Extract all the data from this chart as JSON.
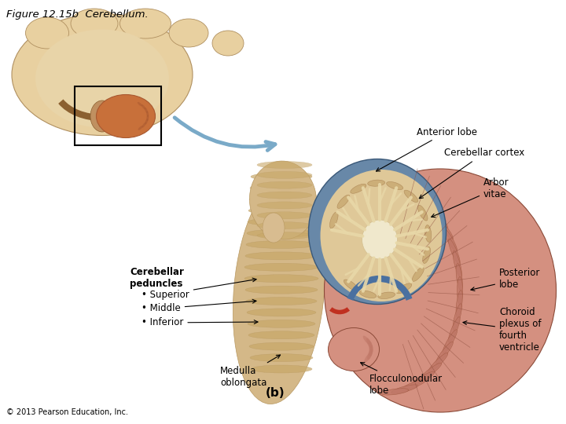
{
  "title": "Figure 12.15b  Cerebellum.",
  "title_fontsize": 9.5,
  "copyright": "© 2013 Pearson Education, Inc.",
  "copyright_fontsize": 7,
  "background_color": "#ffffff",
  "label_b": "(b)",
  "label_b_fontsize": 11,
  "annotation_fontsize": 8.5,
  "peduncle_fontsize": 8.5,
  "colors": {
    "brain_outer": "#E8D0A0",
    "brain_mid": "#DFC090",
    "brain_inner": "#D4AA78",
    "brain_cut": "#C09060",
    "brain_stem": "#B07840",
    "cerebellum_orange": "#C8703A",
    "cerebellum_dark": "#A85830",
    "post_lobe_light": "#D49080",
    "post_lobe_mid": "#C07868",
    "post_lobe_dark": "#A86050",
    "peduncle_tan": "#D4B888",
    "peduncle_dark": "#B89860",
    "blue_anterior": "#7090B8",
    "blue_dark": "#405878",
    "red_choroid": "#C03020",
    "white_matter": "#F0E0B8",
    "arrow_blue": "#7AAAC8"
  }
}
